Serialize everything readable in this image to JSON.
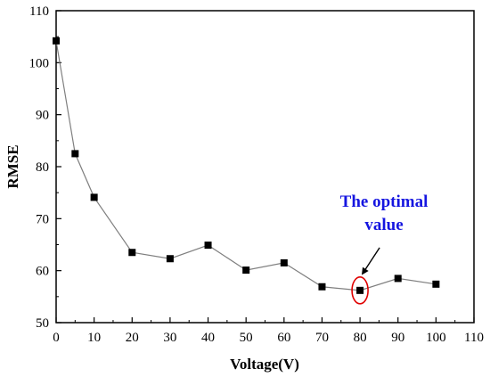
{
  "chart_data": {
    "type": "line",
    "title": "",
    "xlabel": "Voltage(V)",
    "ylabel": "RMSE",
    "xlim": [
      0,
      110
    ],
    "ylim": [
      50,
      110
    ],
    "xticks": [
      "0",
      "10",
      "20",
      "30",
      "40",
      "50",
      "60",
      "70",
      "80",
      "90",
      "100",
      "110"
    ],
    "yticks": [
      "50",
      "60",
      "70",
      "80",
      "90",
      "100",
      "110"
    ],
    "grid": false,
    "legend": "none",
    "marker": "square",
    "series": [
      {
        "name": "",
        "color": "#000000",
        "line_color": "#7f7f7f",
        "x": [
          0,
          5,
          10,
          20,
          30,
          40,
          50,
          60,
          70,
          80,
          90,
          100
        ],
        "y": [
          104.2,
          82.5,
          74.1,
          63.5,
          62.3,
          64.9,
          60.1,
          61.5,
          56.9,
          56.2,
          58.5,
          57.4
        ]
      }
    ],
    "annotation": {
      "line1": "The optimal",
      "line2": "value",
      "color": "#1515e0",
      "highlight_color": "#e00000",
      "target": {
        "x": 80,
        "y": 56.2
      }
    }
  }
}
